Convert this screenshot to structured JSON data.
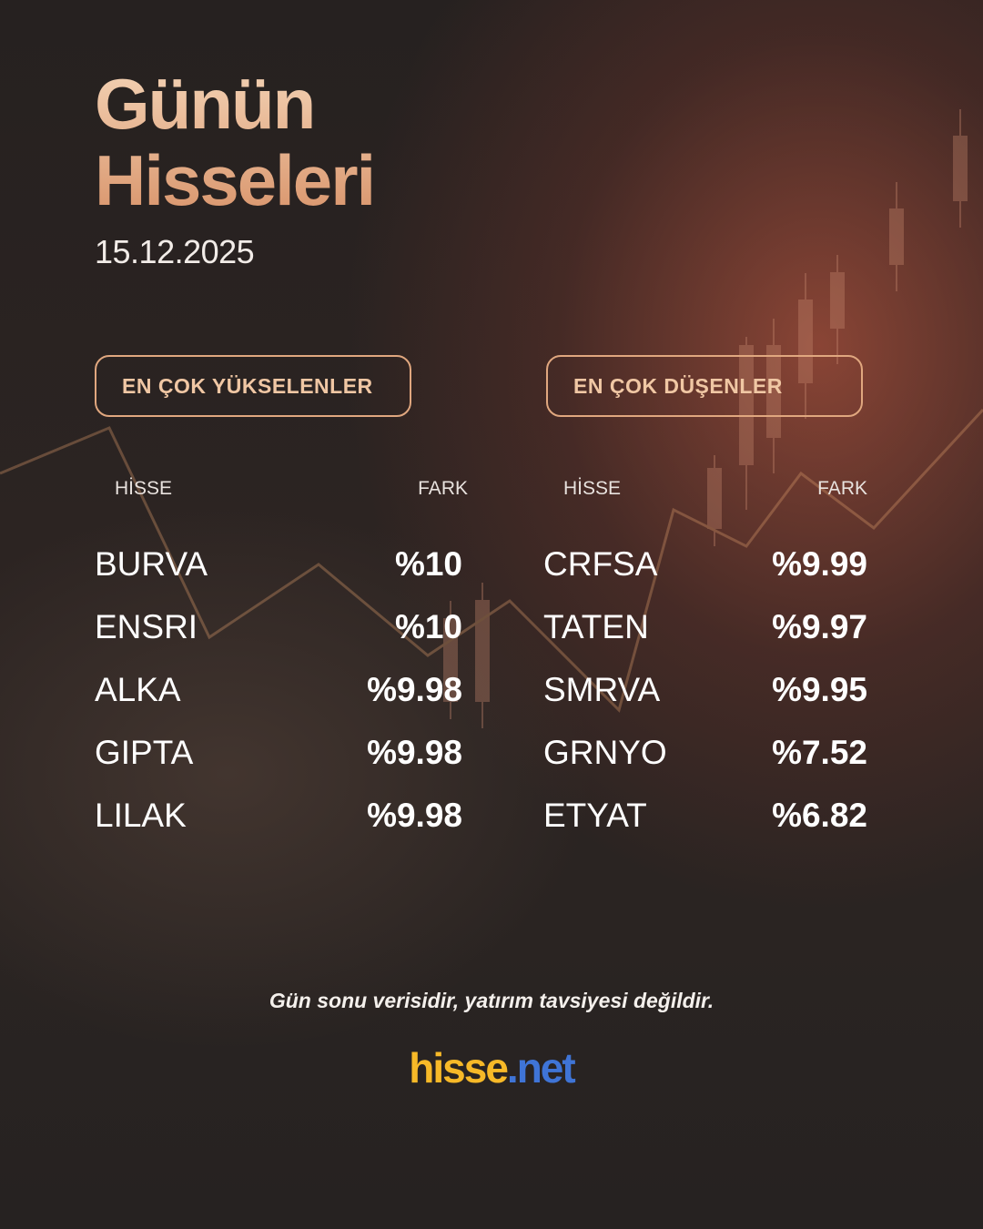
{
  "header": {
    "title_line1": "Günün",
    "title_line2": "Hisseleri",
    "date": "15.12.2025"
  },
  "colors": {
    "accent": "#e0a77f",
    "logo_primary": "#f7b928",
    "logo_secondary": "#3f74d6"
  },
  "gainers": {
    "label": "EN ÇOK YÜKSELENLER",
    "col_stock": "HİSSE",
    "col_change": "FARK",
    "rows": [
      {
        "stock": "BURVA",
        "change": "%10"
      },
      {
        "stock": "ENSRI",
        "change": "%10"
      },
      {
        "stock": "ALKA",
        "change": "%9.98"
      },
      {
        "stock": "GIPTA",
        "change": "%9.98"
      },
      {
        "stock": "LILAK",
        "change": "%9.98"
      }
    ]
  },
  "losers": {
    "label": "EN ÇOK DÜŞENLER",
    "col_stock": "HİSSE",
    "col_change": "FARK",
    "rows": [
      {
        "stock": "CRFSA",
        "change": "%9.99"
      },
      {
        "stock": "TATEN",
        "change": "%9.97"
      },
      {
        "stock": "SMRVA",
        "change": "%9.95"
      },
      {
        "stock": "GRNYO",
        "change": "%7.52"
      },
      {
        "stock": "ETYAT",
        "change": "%6.82"
      }
    ]
  },
  "footer": {
    "disclaimer": "Gün sonu verisidir, yatırım tavsiyesi değildir.",
    "logo_part1": "hisse",
    "logo_part2": ".net"
  }
}
